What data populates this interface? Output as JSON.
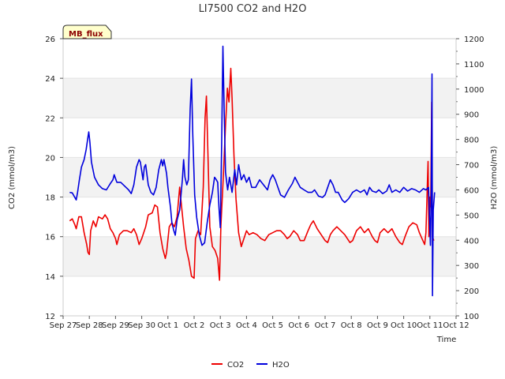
{
  "chart_data": {
    "type": "line",
    "title": "LI7500 CO2 and H2O",
    "site_label": "MB_flux",
    "xlabel": "Time",
    "ylabel_left": "CO2 (mmol/m3)",
    "ylabel_right": "H2O (mmol/m3)",
    "x_tick_labels": [
      "Sep 27",
      "Sep 28",
      "Sep 29",
      "Sep 30",
      "Oct 1",
      "Oct 2",
      "Oct 3",
      "Oct 4",
      "Oct 5",
      "Oct 6",
      "Oct 7",
      "Oct 8",
      "Oct 9",
      "Oct 10",
      "Oct 11",
      "Oct 12"
    ],
    "x_range_days": [
      0,
      15
    ],
    "ylim_left": [
      12,
      26
    ],
    "yticks_left": [
      12,
      14,
      16,
      18,
      20,
      22,
      24,
      26
    ],
    "ylim_right": [
      100,
      1200
    ],
    "yticks_right": [
      100,
      200,
      300,
      400,
      500,
      600,
      700,
      800,
      900,
      1000,
      1100,
      1200
    ],
    "background_bands": "alternating grey bands between 14-16, 18-20, 22-24 (left axis)",
    "legend": [
      {
        "name": "CO2",
        "color": "#ee0000"
      },
      {
        "name": "H2O",
        "color": "#0000dd"
      }
    ],
    "series": [
      {
        "name": "CO2",
        "axis": "left",
        "color": "#ee0000",
        "points": [
          [
            0.25,
            16.8
          ],
          [
            0.35,
            16.9
          ],
          [
            0.45,
            16.6
          ],
          [
            0.5,
            16.4
          ],
          [
            0.6,
            17.0
          ],
          [
            0.7,
            17.0
          ],
          [
            0.8,
            16.2
          ],
          [
            0.9,
            15.6
          ],
          [
            0.95,
            15.2
          ],
          [
            1.0,
            15.1
          ],
          [
            1.05,
            16.3
          ],
          [
            1.15,
            16.8
          ],
          [
            1.25,
            16.5
          ],
          [
            1.35,
            17.0
          ],
          [
            1.5,
            16.9
          ],
          [
            1.6,
            17.1
          ],
          [
            1.7,
            16.9
          ],
          [
            1.8,
            16.4
          ],
          [
            1.9,
            16.2
          ],
          [
            2.0,
            15.9
          ],
          [
            2.05,
            15.6
          ],
          [
            2.15,
            16.1
          ],
          [
            2.3,
            16.3
          ],
          [
            2.45,
            16.3
          ],
          [
            2.6,
            16.2
          ],
          [
            2.7,
            16.4
          ],
          [
            2.8,
            16.1
          ],
          [
            2.9,
            15.6
          ],
          [
            3.0,
            15.9
          ],
          [
            3.15,
            16.5
          ],
          [
            3.25,
            17.1
          ],
          [
            3.4,
            17.2
          ],
          [
            3.5,
            17.6
          ],
          [
            3.6,
            17.5
          ],
          [
            3.7,
            16.2
          ],
          [
            3.8,
            15.4
          ],
          [
            3.9,
            14.9
          ],
          [
            3.95,
            15.2
          ],
          [
            4.05,
            16.5
          ],
          [
            4.15,
            16.7
          ],
          [
            4.25,
            16.5
          ],
          [
            4.35,
            17.0
          ],
          [
            4.45,
            18.5
          ],
          [
            4.5,
            17.8
          ],
          [
            4.6,
            16.5
          ],
          [
            4.7,
            15.4
          ],
          [
            4.8,
            14.8
          ],
          [
            4.9,
            14.0
          ],
          [
            5.0,
            13.9
          ],
          [
            5.05,
            15.9
          ],
          [
            5.15,
            16.3
          ],
          [
            5.25,
            16.1
          ],
          [
            5.35,
            18.5
          ],
          [
            5.42,
            22.0
          ],
          [
            5.47,
            23.1
          ],
          [
            5.52,
            20.5
          ],
          [
            5.6,
            16.5
          ],
          [
            5.7,
            15.5
          ],
          [
            5.8,
            15.3
          ],
          [
            5.9,
            14.9
          ],
          [
            5.97,
            13.8
          ],
          [
            6.02,
            16.5
          ],
          [
            6.12,
            19.2
          ],
          [
            6.2,
            21.6
          ],
          [
            6.27,
            23.5
          ],
          [
            6.33,
            22.8
          ],
          [
            6.4,
            24.5
          ],
          [
            6.45,
            23.0
          ],
          [
            6.52,
            20.1
          ],
          [
            6.6,
            17.9
          ],
          [
            6.7,
            16.2
          ],
          [
            6.8,
            15.5
          ],
          [
            6.9,
            15.9
          ],
          [
            7.0,
            16.3
          ],
          [
            7.1,
            16.1
          ],
          [
            7.25,
            16.2
          ],
          [
            7.4,
            16.1
          ],
          [
            7.55,
            15.9
          ],
          [
            7.7,
            15.8
          ],
          [
            7.85,
            16.1
          ],
          [
            8.0,
            16.2
          ],
          [
            8.15,
            16.3
          ],
          [
            8.3,
            16.3
          ],
          [
            8.45,
            16.1
          ],
          [
            8.55,
            15.9
          ],
          [
            8.65,
            16.0
          ],
          [
            8.8,
            16.3
          ],
          [
            8.95,
            16.1
          ],
          [
            9.05,
            15.8
          ],
          [
            9.2,
            15.8
          ],
          [
            9.35,
            16.3
          ],
          [
            9.45,
            16.6
          ],
          [
            9.55,
            16.8
          ],
          [
            9.7,
            16.4
          ],
          [
            9.85,
            16.1
          ],
          [
            10.0,
            15.8
          ],
          [
            10.1,
            15.7
          ],
          [
            10.2,
            16.1
          ],
          [
            10.3,
            16.3
          ],
          [
            10.45,
            16.5
          ],
          [
            10.6,
            16.3
          ],
          [
            10.75,
            16.1
          ],
          [
            10.85,
            15.9
          ],
          [
            10.95,
            15.7
          ],
          [
            11.05,
            15.8
          ],
          [
            11.2,
            16.3
          ],
          [
            11.35,
            16.5
          ],
          [
            11.5,
            16.2
          ],
          [
            11.65,
            16.4
          ],
          [
            11.8,
            16.0
          ],
          [
            11.9,
            15.8
          ],
          [
            12.0,
            15.7
          ],
          [
            12.1,
            16.2
          ],
          [
            12.25,
            16.4
          ],
          [
            12.4,
            16.2
          ],
          [
            12.55,
            16.4
          ],
          [
            12.7,
            16.0
          ],
          [
            12.85,
            15.7
          ],
          [
            12.95,
            15.6
          ],
          [
            13.05,
            16.0
          ],
          [
            13.2,
            16.5
          ],
          [
            13.35,
            16.7
          ],
          [
            13.5,
            16.6
          ],
          [
            13.6,
            16.2
          ],
          [
            13.7,
            15.9
          ],
          [
            13.8,
            15.6
          ],
          [
            13.85,
            16.2
          ],
          [
            13.9,
            18.5
          ],
          [
            13.93,
            19.8
          ],
          [
            13.96,
            16.0
          ],
          [
            14.0,
            18.0
          ],
          [
            14.03,
            17.5
          ],
          [
            14.07,
            22.8
          ],
          [
            14.1,
            16.0
          ],
          [
            14.15,
            15.8
          ]
        ]
      },
      {
        "name": "H2O",
        "axis": "right",
        "color": "#0000dd",
        "points": [
          [
            0.25,
            590
          ],
          [
            0.35,
            588
          ],
          [
            0.42,
            575
          ],
          [
            0.5,
            560
          ],
          [
            0.55,
            590
          ],
          [
            0.62,
            640
          ],
          [
            0.7,
            690
          ],
          [
            0.8,
            720
          ],
          [
            0.88,
            760
          ],
          [
            0.95,
            810
          ],
          [
            0.98,
            830
          ],
          [
            1.02,
            790
          ],
          [
            1.08,
            710
          ],
          [
            1.2,
            650
          ],
          [
            1.35,
            620
          ],
          [
            1.5,
            605
          ],
          [
            1.65,
            600
          ],
          [
            1.8,
            625
          ],
          [
            1.9,
            640
          ],
          [
            1.95,
            660
          ],
          [
            2.05,
            630
          ],
          [
            2.2,
            630
          ],
          [
            2.35,
            615
          ],
          [
            2.5,
            600
          ],
          [
            2.6,
            585
          ],
          [
            2.7,
            620
          ],
          [
            2.8,
            690
          ],
          [
            2.9,
            720
          ],
          [
            2.95,
            710
          ],
          [
            3.05,
            640
          ],
          [
            3.1,
            690
          ],
          [
            3.15,
            700
          ],
          [
            3.25,
            620
          ],
          [
            3.35,
            590
          ],
          [
            3.45,
            580
          ],
          [
            3.55,
            610
          ],
          [
            3.65,
            680
          ],
          [
            3.75,
            720
          ],
          [
            3.8,
            695
          ],
          [
            3.85,
            720
          ],
          [
            3.95,
            665
          ],
          [
            4.0,
            610
          ],
          [
            4.1,
            530
          ],
          [
            4.15,
            470
          ],
          [
            4.22,
            440
          ],
          [
            4.28,
            420
          ],
          [
            4.35,
            480
          ],
          [
            4.45,
            520
          ],
          [
            4.55,
            640
          ],
          [
            4.6,
            720
          ],
          [
            4.65,
            650
          ],
          [
            4.72,
            620
          ],
          [
            4.78,
            640
          ],
          [
            4.85,
            920
          ],
          [
            4.9,
            1040
          ],
          [
            4.95,
            820
          ],
          [
            5.02,
            580
          ],
          [
            5.1,
            490
          ],
          [
            5.2,
            420
          ],
          [
            5.3,
            380
          ],
          [
            5.4,
            390
          ],
          [
            5.5,
            470
          ],
          [
            5.6,
            540
          ],
          [
            5.7,
            590
          ],
          [
            5.78,
            650
          ],
          [
            5.85,
            640
          ],
          [
            5.9,
            630
          ],
          [
            5.95,
            530
          ],
          [
            6.0,
            450
          ],
          [
            6.05,
            780
          ],
          [
            6.1,
            1170
          ],
          [
            6.15,
            900
          ],
          [
            6.2,
            670
          ],
          [
            6.28,
            600
          ],
          [
            6.35,
            650
          ],
          [
            6.45,
            590
          ],
          [
            6.55,
            680
          ],
          [
            6.62,
            620
          ],
          [
            6.7,
            700
          ],
          [
            6.8,
            640
          ],
          [
            6.9,
            660
          ],
          [
            7.0,
            630
          ],
          [
            7.1,
            650
          ],
          [
            7.2,
            610
          ],
          [
            7.35,
            610
          ],
          [
            7.5,
            640
          ],
          [
            7.65,
            620
          ],
          [
            7.8,
            600
          ],
          [
            7.9,
            640
          ],
          [
            8.0,
            660
          ],
          [
            8.1,
            640
          ],
          [
            8.2,
            610
          ],
          [
            8.3,
            580
          ],
          [
            8.45,
            570
          ],
          [
            8.6,
            600
          ],
          [
            8.75,
            625
          ],
          [
            8.85,
            650
          ],
          [
            8.95,
            630
          ],
          [
            9.05,
            610
          ],
          [
            9.2,
            600
          ],
          [
            9.35,
            590
          ],
          [
            9.5,
            590
          ],
          [
            9.6,
            600
          ],
          [
            9.75,
            575
          ],
          [
            9.9,
            570
          ],
          [
            10.0,
            580
          ],
          [
            10.1,
            610
          ],
          [
            10.2,
            640
          ],
          [
            10.3,
            620
          ],
          [
            10.4,
            590
          ],
          [
            10.5,
            590
          ],
          [
            10.65,
            560
          ],
          [
            10.75,
            550
          ],
          [
            10.9,
            565
          ],
          [
            11.05,
            590
          ],
          [
            11.2,
            600
          ],
          [
            11.35,
            590
          ],
          [
            11.5,
            600
          ],
          [
            11.6,
            580
          ],
          [
            11.7,
            610
          ],
          [
            11.8,
            595
          ],
          [
            11.95,
            590
          ],
          [
            12.05,
            600
          ],
          [
            12.2,
            585
          ],
          [
            12.35,
            595
          ],
          [
            12.45,
            620
          ],
          [
            12.55,
            590
          ],
          [
            12.7,
            600
          ],
          [
            12.85,
            590
          ],
          [
            13.0,
            610
          ],
          [
            13.15,
            595
          ],
          [
            13.3,
            605
          ],
          [
            13.45,
            600
          ],
          [
            13.6,
            590
          ],
          [
            13.75,
            605
          ],
          [
            13.85,
            600
          ],
          [
            13.95,
            610
          ],
          [
            14.02,
            380
          ],
          [
            14.05,
            600
          ],
          [
            14.08,
            1060
          ],
          [
            14.1,
            180
          ],
          [
            14.13,
            520
          ],
          [
            14.18,
            590
          ]
        ]
      }
    ]
  }
}
